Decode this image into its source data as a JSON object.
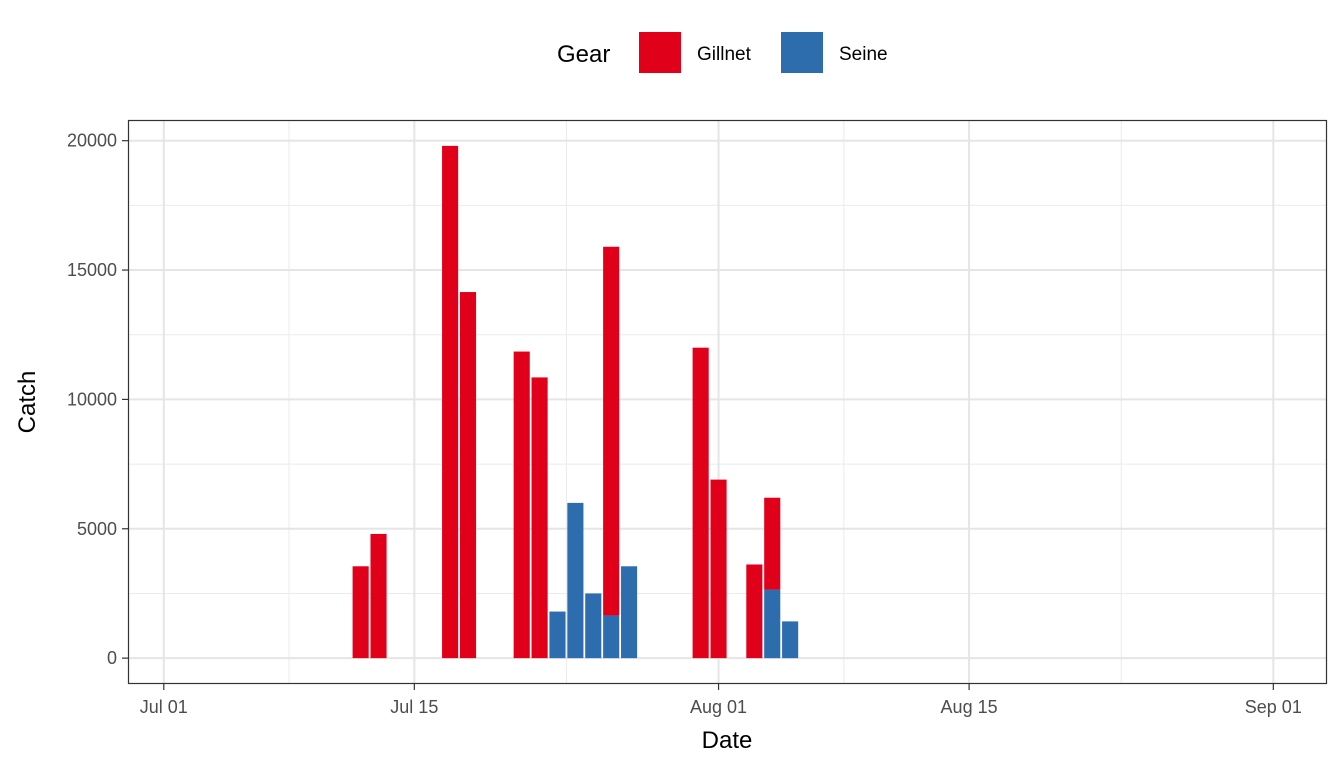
{
  "chart_data": {
    "type": "bar",
    "stacked": true,
    "xlabel": "Date",
    "ylabel": "Catch",
    "x_ticks": [
      "Jul 01",
      "Jul 15",
      "Aug 01",
      "Aug 15",
      "Sep 01"
    ],
    "y_ticks": [
      "0",
      "5000",
      "10000",
      "15000",
      "20000"
    ],
    "xlim": [
      "Jun 29",
      "Sep 04"
    ],
    "ylim": [
      -1000,
      20800
    ],
    "grid": true,
    "legend": {
      "title": "Gear",
      "position": "top",
      "entries": [
        "Gillnet",
        "Seine"
      ]
    },
    "series": [
      {
        "name": "Gillnet",
        "color": "#e0001a",
        "points": [
          {
            "date": "Jul 12",
            "value": 3550
          },
          {
            "date": "Jul 13",
            "value": 4800
          },
          {
            "date": "Jul 17",
            "value": 19800
          },
          {
            "date": "Jul 18",
            "value": 14150
          },
          {
            "date": "Jul 21",
            "value": 11850
          },
          {
            "date": "Jul 22",
            "value": 10850
          },
          {
            "date": "Jul 26",
            "value": 14250
          },
          {
            "date": "Jul 31",
            "value": 12000
          },
          {
            "date": "Aug 01",
            "value": 6900
          },
          {
            "date": "Aug 03",
            "value": 3620
          },
          {
            "date": "Aug 04",
            "value": 3550
          }
        ]
      },
      {
        "name": "Seine",
        "color": "#2e6dad",
        "points": [
          {
            "date": "Jul 23",
            "value": 1800
          },
          {
            "date": "Jul 24",
            "value": 6000
          },
          {
            "date": "Jul 25",
            "value": 2500
          },
          {
            "date": "Jul 26",
            "value": 1650
          },
          {
            "date": "Jul 27",
            "value": 3550
          },
          {
            "date": "Aug 04",
            "value": 2650
          },
          {
            "date": "Aug 05",
            "value": 1420
          }
        ]
      }
    ]
  }
}
